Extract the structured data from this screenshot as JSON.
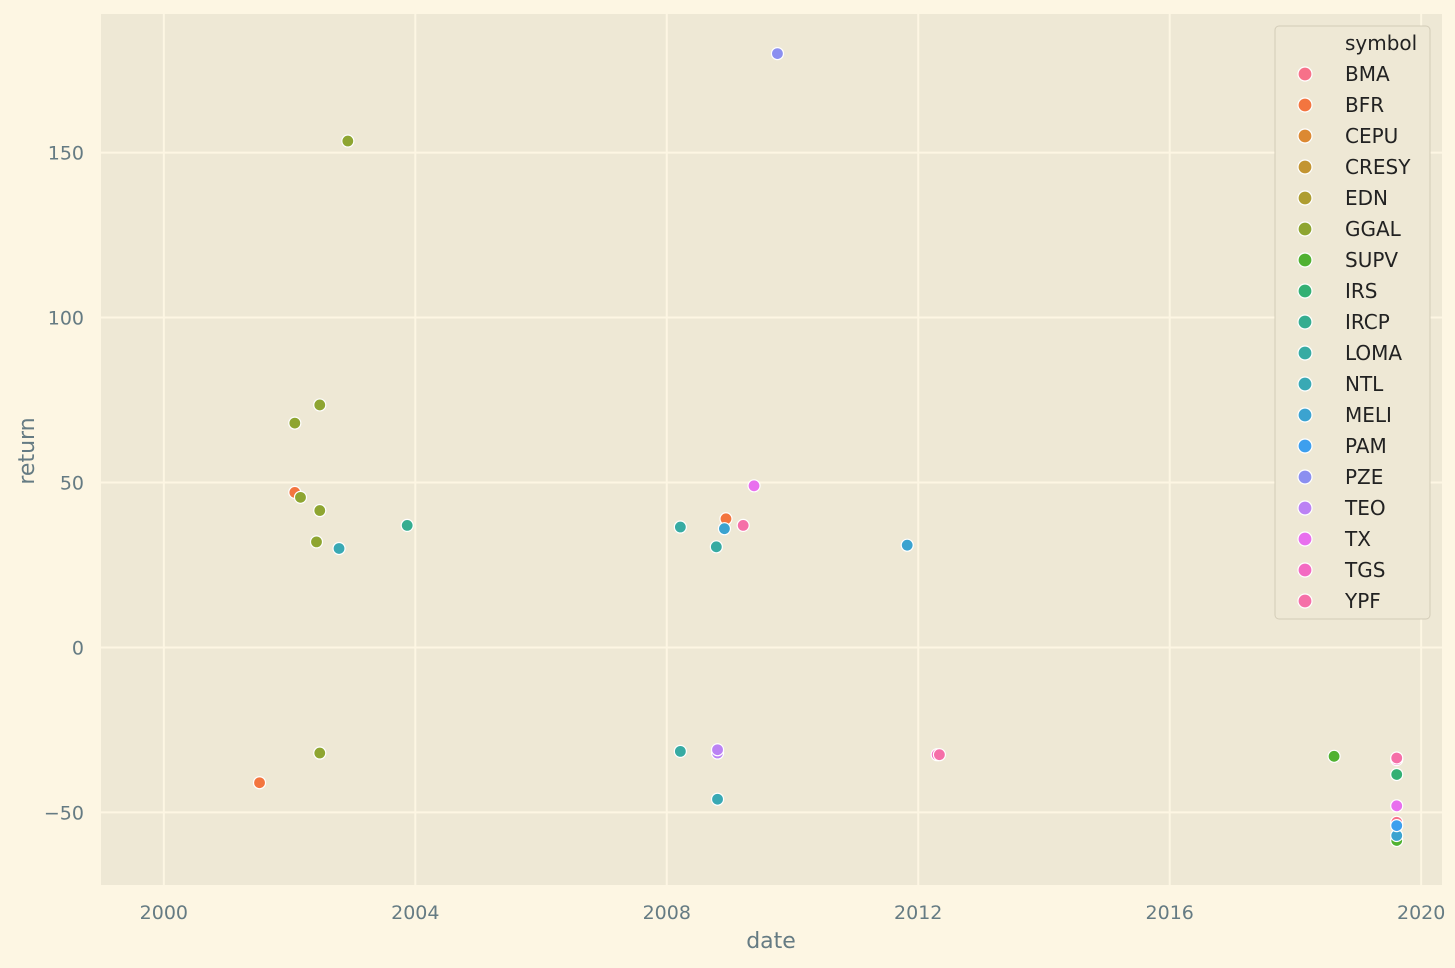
{
  "chart_data": {
    "type": "scatter",
    "title": "",
    "xlabel": "date",
    "ylabel": "return",
    "xlim": [
      "1999-01-01",
      "2020-05-01"
    ],
    "ylim": [
      -72,
      192
    ],
    "x_ticks": [
      "2000",
      "2004",
      "2008",
      "2012",
      "2016",
      "2020"
    ],
    "y_ticks": [
      -50,
      0,
      50,
      100,
      150
    ],
    "grid": true,
    "legend": {
      "title": "symbol",
      "placement": "top-right"
    },
    "series": [
      {
        "name": "BMA",
        "color": "#f77189",
        "points": [
          {
            "x": "2019-08-12",
            "y": -53
          }
        ]
      },
      {
        "name": "BFR",
        "color": "#f3753f",
        "points": [
          {
            "x": "2001-07-10",
            "y": -41
          },
          {
            "x": "2002-01-31",
            "y": 47
          },
          {
            "x": "2008-12-10",
            "y": 39
          }
        ]
      },
      {
        "name": "CEPU",
        "color": "#dc8932",
        "points": []
      },
      {
        "name": "CRESY",
        "color": "#c39532",
        "points": []
      },
      {
        "name": "EDN",
        "color": "#ae9d31",
        "points": []
      },
      {
        "name": "GGAL",
        "color": "#8ea531",
        "points": [
          {
            "x": "2002-01-31",
            "y": 68
          },
          {
            "x": "2002-03-05",
            "y": 45.5
          },
          {
            "x": "2002-06-06",
            "y": 32
          },
          {
            "x": "2002-06-25",
            "y": 73.5
          },
          {
            "x": "2002-06-25",
            "y": 41.5
          },
          {
            "x": "2002-06-25",
            "y": -32
          },
          {
            "x": "2002-12-05",
            "y": 153.5
          }
        ]
      },
      {
        "name": "SUPV",
        "color": "#50b131",
        "points": [
          {
            "x": "2018-08-13",
            "y": -33
          },
          {
            "x": "2019-08-12",
            "y": -58.5
          }
        ]
      },
      {
        "name": "IRS",
        "color": "#33b074",
        "points": [
          {
            "x": "2019-08-12",
            "y": -38.5
          }
        ]
      },
      {
        "name": "IRCP",
        "color": "#35ad90",
        "points": [
          {
            "x": "2003-11-15",
            "y": 37
          }
        ]
      },
      {
        "name": "LOMA",
        "color": "#37aba3",
        "points": [
          {
            "x": "2008-03-20",
            "y": 36.5
          },
          {
            "x": "2008-03-20",
            "y": -31.5
          },
          {
            "x": "2008-10-15",
            "y": 30.5
          }
        ]
      },
      {
        "name": "NTL",
        "color": "#39a9b4",
        "points": [
          {
            "x": "2002-10-15",
            "y": 30
          },
          {
            "x": "2008-10-22",
            "y": -46
          }
        ]
      },
      {
        "name": "MELI",
        "color": "#3ba3d0",
        "points": [
          {
            "x": "2008-12-01",
            "y": 36
          },
          {
            "x": "2011-10-29",
            "y": 31
          },
          {
            "x": "2019-08-12",
            "y": -57
          }
        ]
      },
      {
        "name": "PAM",
        "color": "#3d9fee",
        "points": [
          {
            "x": "2019-08-12",
            "y": -54
          }
        ]
      },
      {
        "name": "PZE",
        "color": "#8b8ff0",
        "points": [
          {
            "x": "2009-10-05",
            "y": 180
          }
        ]
      },
      {
        "name": "TEO",
        "color": "#bb82f4",
        "points": [
          {
            "x": "2008-10-22",
            "y": -32
          },
          {
            "x": "2008-10-22",
            "y": -31
          }
        ]
      },
      {
        "name": "TX",
        "color": "#e86fee",
        "points": [
          {
            "x": "2009-05-22",
            "y": 49
          },
          {
            "x": "2019-08-12",
            "y": -48
          }
        ]
      },
      {
        "name": "TGS",
        "color": "#f36ac2",
        "points": [
          {
            "x": "2012-04-20",
            "y": -32.5
          },
          {
            "x": "2019-08-12",
            "y": -34
          }
        ]
      },
      {
        "name": "YPF",
        "color": "#f56fa8",
        "points": [
          {
            "x": "2009-03-20",
            "y": 37
          },
          {
            "x": "2012-05-03",
            "y": -32.5
          },
          {
            "x": "2019-08-12",
            "y": -33.5
          }
        ]
      }
    ]
  }
}
